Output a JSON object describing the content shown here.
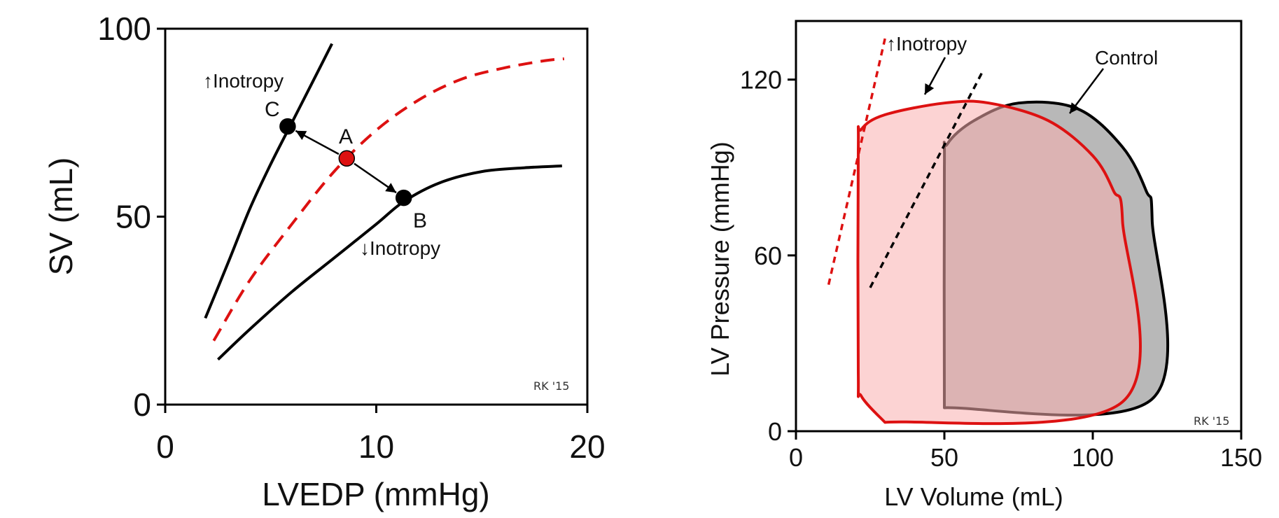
{
  "chart_data": [
    {
      "type": "line",
      "xlabel": "LVEDP (mmHg)",
      "ylabel": "SV (mL)",
      "xlim": [
        0,
        20
      ],
      "ylim": [
        0,
        100
      ],
      "xticks": [
        0,
        10,
        20
      ],
      "yticks": [
        0,
        50,
        100
      ],
      "grid": false,
      "signature": "RK '15",
      "series": [
        {
          "name": "↑Inotropy",
          "color": "#000000",
          "dash": false,
          "x": [
            1.9,
            3.0,
            4.0,
            5.0,
            6.0,
            7.0,
            7.9
          ],
          "y": [
            23,
            38,
            52,
            64,
            75,
            86,
            96
          ]
        },
        {
          "name": "",
          "color": "#dd1111",
          "dash": true,
          "x": [
            2.3,
            4.0,
            6.0,
            8.0,
            10.0,
            12.0,
            14.0,
            16.0,
            18.0,
            18.9
          ],
          "y": [
            17,
            33,
            48,
            62,
            73,
            81,
            86.5,
            89.5,
            91.5,
            92
          ]
        },
        {
          "name": "↓Inotropy",
          "color": "#000000",
          "dash": false,
          "x": [
            2.5,
            4.0,
            6.0,
            8.0,
            10.0,
            11.3,
            13.0,
            15.0,
            17.0,
            18.8
          ],
          "y": [
            12,
            20,
            30,
            39,
            48,
            54,
            59,
            62,
            63,
            63.5
          ]
        }
      ],
      "points": [
        {
          "label": "A",
          "x": 8.6,
          "y": 65.5,
          "color": "#dd1111"
        },
        {
          "label": "B",
          "x": 11.3,
          "y": 55,
          "color": "#000000"
        },
        {
          "label": "C",
          "x": 5.8,
          "y": 74,
          "color": "#000000"
        }
      ],
      "labels": {
        "up": "↑Inotropy",
        "down": "↓Inotropy",
        "A": "A",
        "B": "B",
        "C": "C"
      }
    },
    {
      "type": "area",
      "xlabel": "LV Volume (mL)",
      "ylabel": "LV Pressure (mmHg)",
      "xlim": [
        0,
        150
      ],
      "ylim": [
        0,
        140
      ],
      "xticks": [
        0,
        50,
        100,
        150
      ],
      "yticks": [
        0,
        60,
        120
      ],
      "grid": false,
      "signature": "RK '15",
      "annotations": {
        "inotropy": "↑Inotropy",
        "control": "Control"
      },
      "series": [
        {
          "name": "Control",
          "color": "#000000",
          "fill": "#b8b8b8",
          "loop": [
            [
              50,
              8
            ],
            [
              120,
              11
            ],
            [
              120,
              72
            ],
            [
              118,
              82
            ],
            [
              110,
              97
            ],
            [
              95,
              110
            ],
            [
              75,
              112
            ],
            [
              60,
              106
            ],
            [
              51,
              98
            ],
            [
              50,
              90
            ],
            [
              50,
              8
            ]
          ]
        },
        {
          "name": "↑Inotropy",
          "color": "#dd1111",
          "fill": "rgba(250,175,175,0.55)",
          "loop": [
            [
              30,
              3
            ],
            [
              110,
              10
            ],
            [
              110,
              72
            ],
            [
              107,
              82
            ],
            [
              100,
              94
            ],
            [
              85,
              106
            ],
            [
              65,
              112
            ],
            [
              50,
              112
            ],
            [
              30,
              108
            ],
            [
              22,
              103
            ],
            [
              21,
              96
            ],
            [
              21,
              20
            ],
            [
              22,
              12
            ],
            [
              30,
              3
            ]
          ]
        }
      ],
      "espvr": [
        {
          "name": "Control",
          "color": "#000000",
          "x": [
            25,
            63
          ],
          "y": [
            49,
            123
          ]
        },
        {
          "name": "↑Inotropy",
          "color": "#dd1111",
          "x": [
            11,
            30
          ],
          "y": [
            50,
            134
          ]
        }
      ]
    }
  ]
}
